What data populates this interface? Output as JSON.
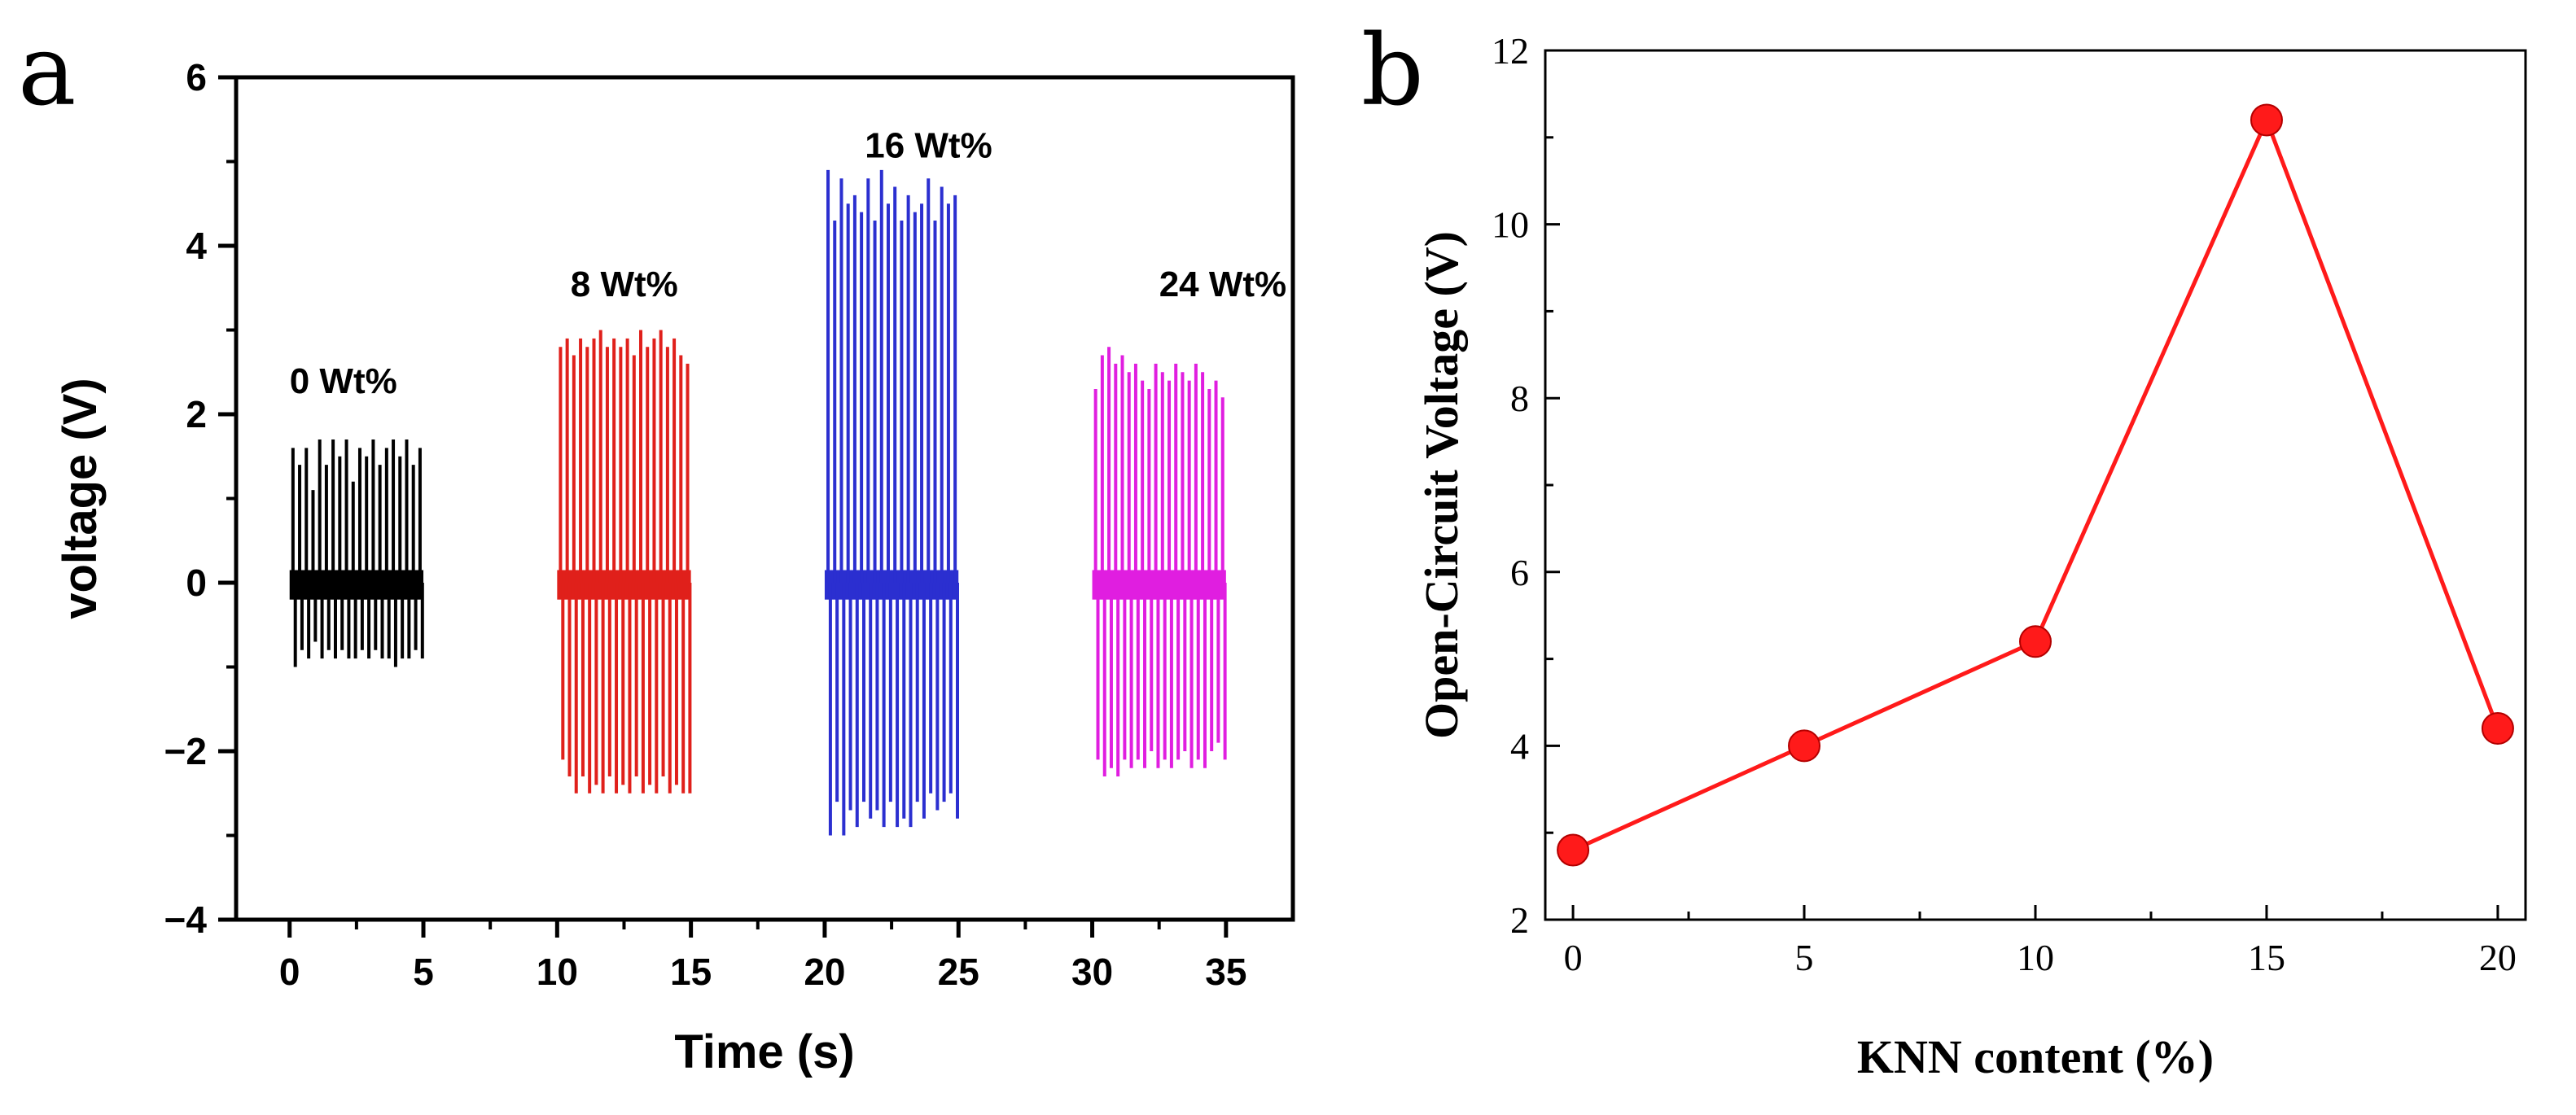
{
  "panels": {
    "a_label": "a",
    "b_label": "b"
  },
  "chart_data": [
    {
      "id": "a",
      "type": "line",
      "title": "",
      "xlabel": "Time (s)",
      "ylabel": "voltage (V)",
      "xlim": [
        -2,
        37.5
      ],
      "ylim": [
        -4,
        6
      ],
      "xticks": [
        0,
        5,
        10,
        15,
        20,
        25,
        30,
        35
      ],
      "xtick_labels": [
        "0",
        "5",
        "10",
        "15",
        "20",
        "25",
        "30",
        "35"
      ],
      "yticks": [
        -4,
        -2,
        0,
        2,
        4,
        6
      ],
      "ytick_labels": [
        "−4",
        "−2",
        "0",
        "2",
        "4",
        "6"
      ],
      "series": [
        {
          "name": "0 Wt%",
          "color": "#000000",
          "t_start": 0,
          "t_end": 5,
          "peaks_pos": [
            1.6,
            1.4,
            1.6,
            1.1,
            1.7,
            1.4,
            1.7,
            1.5,
            1.7,
            1.2,
            1.6,
            1.5,
            1.7,
            1.4,
            1.6,
            1.7,
            1.5,
            1.7,
            1.4,
            1.6
          ],
          "peaks_neg": [
            -1.0,
            -0.8,
            -0.9,
            -0.7,
            -0.9,
            -0.8,
            -0.9,
            -0.8,
            -0.9,
            -0.9,
            -0.8,
            -0.9,
            -0.8,
            -0.9,
            -0.9,
            -1.0,
            -0.9,
            -0.9,
            -0.8,
            -0.9
          ],
          "label": "0 Wt%",
          "label_pos": {
            "x": 0,
            "y": 2.25
          }
        },
        {
          "name": "8 Wt%",
          "color": "#e0201b",
          "t_start": 10,
          "t_end": 15,
          "peaks_pos": [
            2.8,
            2.9,
            2.7,
            2.9,
            2.8,
            2.9,
            3.0,
            2.8,
            2.9,
            2.8,
            2.9,
            2.7,
            3.0,
            2.8,
            2.9,
            3.0,
            2.8,
            2.9,
            2.7,
            2.6
          ],
          "peaks_neg": [
            -2.1,
            -2.3,
            -2.5,
            -2.3,
            -2.5,
            -2.4,
            -2.5,
            -2.3,
            -2.5,
            -2.4,
            -2.5,
            -2.3,
            -2.5,
            -2.4,
            -2.5,
            -2.3,
            -2.5,
            -2.4,
            -2.5,
            -2.5
          ],
          "label": "8 Wt%",
          "label_pos": {
            "x": 10.5,
            "y": 3.4
          }
        },
        {
          "name": "16 Wt%",
          "color": "#2b2fd0",
          "t_start": 20,
          "t_end": 25,
          "peaks_pos": [
            4.9,
            4.3,
            4.8,
            4.5,
            4.6,
            4.4,
            4.8,
            4.3,
            4.9,
            4.5,
            4.7,
            4.3,
            4.6,
            4.4,
            4.5,
            4.8,
            4.3,
            4.7,
            4.5,
            4.6
          ],
          "peaks_neg": [
            -3.0,
            -2.6,
            -3.0,
            -2.7,
            -2.9,
            -2.6,
            -2.8,
            -2.7,
            -2.9,
            -2.6,
            -2.9,
            -2.8,
            -2.9,
            -2.6,
            -2.8,
            -2.5,
            -2.7,
            -2.6,
            -2.5,
            -2.8
          ],
          "label": "16 Wt%",
          "label_pos": {
            "x": 21.5,
            "y": 5.05
          }
        },
        {
          "name": "24 Wt%",
          "color": "#e01ee0",
          "t_start": 30,
          "t_end": 35,
          "peaks_pos": [
            2.3,
            2.7,
            2.8,
            2.6,
            2.7,
            2.5,
            2.6,
            2.4,
            2.3,
            2.6,
            2.5,
            2.4,
            2.6,
            2.5,
            2.4,
            2.6,
            2.5,
            2.3,
            2.4,
            2.2
          ],
          "peaks_neg": [
            -2.1,
            -2.3,
            -2.2,
            -2.3,
            -2.1,
            -2.2,
            -2.1,
            -2.2,
            -2.0,
            -2.2,
            -2.1,
            -2.2,
            -2.1,
            -2.0,
            -2.2,
            -2.1,
            -2.2,
            -2.0,
            -1.9,
            -2.1
          ],
          "label": "24 Wt%",
          "label_pos": {
            "x": 32.5,
            "y": 3.4
          }
        }
      ]
    },
    {
      "id": "b",
      "type": "line",
      "title": "",
      "xlabel": "KNN content (%)",
      "ylabel": "Open-Circuit Voltage (V)",
      "xlim": [
        -0.6,
        20.6
      ],
      "ylim": [
        2,
        12
      ],
      "xticks": [
        0,
        5,
        10,
        15,
        20
      ],
      "xtick_labels": [
        "0",
        "5",
        "10",
        "15",
        "20"
      ],
      "yticks": [
        2,
        4,
        6,
        8,
        10,
        12
      ],
      "ytick_labels": [
        "2",
        "4",
        "6",
        "8",
        "10",
        "12"
      ],
      "series": [
        {
          "name": "Open-Circuit Voltage",
          "color": "#ff1a1a",
          "x": [
            0,
            5,
            10,
            15,
            20
          ],
          "y": [
            2.8,
            4.0,
            5.2,
            11.2,
            4.2
          ]
        }
      ]
    }
  ]
}
